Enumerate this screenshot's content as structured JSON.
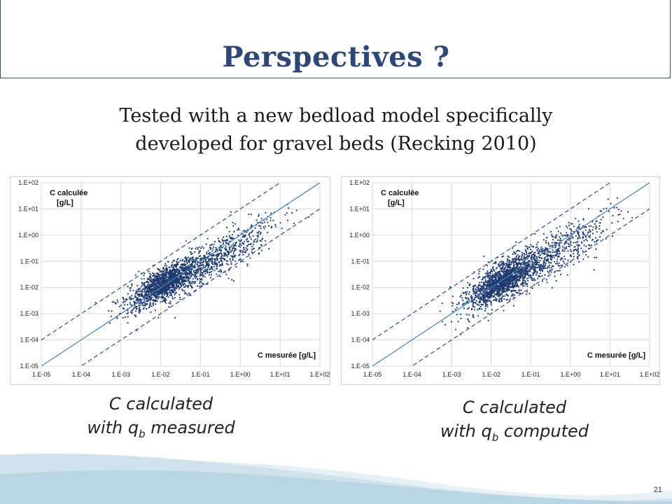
{
  "slide": {
    "title": "Perspectives ?",
    "subtitle_line1": "Tested with a new bedload model specifically",
    "subtitle_line2": "developed for gravel beds (Recking 2010)",
    "page_number": "21"
  },
  "chart_data": [
    {
      "type": "scatter",
      "ylabel_line1": "C calculée",
      "ylabel_line2": "[g/L]",
      "xlabel": "C  mesurée [g/L]",
      "xscale": "log",
      "yscale": "log",
      "xlim": [
        1e-05,
        100
      ],
      "ylim": [
        1e-05,
        100
      ],
      "x_ticks": [
        "1.E-05",
        "1.E-04",
        "1.E-03",
        "1.E-02",
        "1.E-01",
        "1.E+00",
        "1.E+01",
        "1.E+02"
      ],
      "y_ticks": [
        "1.E-05",
        "1.E-04",
        "1.E-03",
        "1.E-02",
        "1.E-01",
        "1.E+00",
        "1.E+01",
        "1.E+02"
      ],
      "grid": true,
      "reference_lines": [
        "y = x",
        "y = 10x (dashed)",
        "y = x/10 (dashed)"
      ],
      "point_color": "#1f3a6e",
      "line_color": "#4a7ebb",
      "dashed_color": "#2f4b80",
      "caption_line1": "C calculated",
      "caption_line2_prefix": "with q",
      "caption_sub": "b",
      "caption_line2_suffix": " measured"
    },
    {
      "type": "scatter",
      "ylabel_line1": "C calculée",
      "ylabel_line2": "[g/L]",
      "xlabel": "C mesurée [g/L]",
      "xscale": "log",
      "yscale": "log",
      "xlim": [
        1e-05,
        100
      ],
      "ylim": [
        1e-05,
        100
      ],
      "x_ticks": [
        "1.E-05",
        "1.E-04",
        "1.E-03",
        "1.E-02",
        "1.E-01",
        "1.E+00",
        "1.E+01",
        "1.E+02"
      ],
      "y_ticks": [
        "1.E-05",
        "1.E-04",
        "1.E-03",
        "1.E-02",
        "1.E-01",
        "1.E+00",
        "1.E+01",
        "1.E+02"
      ],
      "grid": true,
      "reference_lines": [
        "y = x",
        "y = 10x (dashed)",
        "y = x/10 (dashed)"
      ],
      "point_color": "#1f3a6e",
      "line_color": "#4a7ebb",
      "dashed_color": "#2f4b80",
      "caption_line1": "C calculated",
      "caption_line2_prefix": "with q",
      "caption_sub": "b",
      "caption_line2_suffix": " computed"
    }
  ]
}
